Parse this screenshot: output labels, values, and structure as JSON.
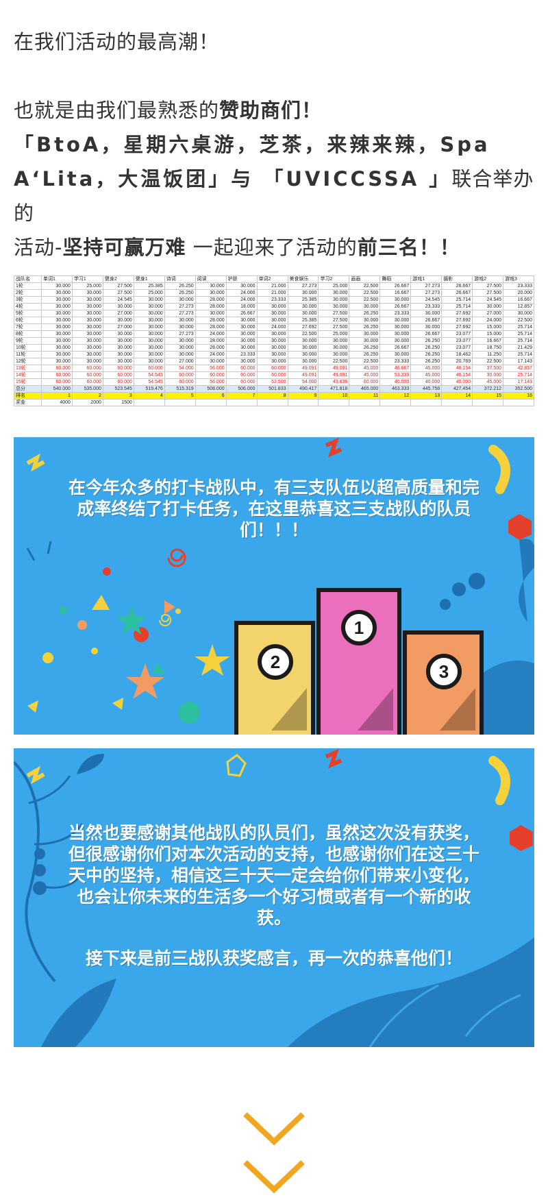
{
  "article": {
    "line1": "在我们活动的最高潮！",
    "line2_pre": "也就是由我们最熟悉的",
    "line2_bold": "赞助商们！",
    "sponsors": "「BtoA，星期六桌游，芝茶，来辣来辣，Spa A‘Lita，大温饭团」与 「UVICCSSA 」",
    "joint": "联合举办的",
    "line5_pre": "活动-",
    "campaign": "坚持可赢万难",
    "line5_mid": " 一起迎来了活动的",
    "top3": "前三名！！"
  },
  "spreadsheet": {
    "headers": [
      "战队名",
      "单词1",
      "学习1",
      "健身2",
      "健身1",
      "诗词",
      "阅读",
      "护肤",
      "单词2",
      "美食娱乐",
      "学习2",
      "画画",
      "舞蹈",
      "游戏1",
      "摄影",
      "游戏2",
      "游戏3"
    ],
    "rows": [
      [
        "1轮",
        "30.000",
        "25.000",
        "27.500",
        "25.385",
        "26.250",
        "30.000",
        "30.000",
        "21.000",
        "27.273",
        "25.000",
        "22.500",
        "26.667",
        "27.273",
        "26.667",
        "27.500",
        "23.333"
      ],
      [
        "2轮",
        "30.000",
        "30.000",
        "27.500",
        "25.000",
        "26.250",
        "30.000",
        "24.000",
        "21.000",
        "30.000",
        "30.000",
        "22.500",
        "16.667",
        "27.273",
        "26.667",
        "27.500",
        "20.000"
      ],
      [
        "3轮",
        "30.000",
        "30.000",
        "24.545",
        "30.000",
        "30.000",
        "28.000",
        "24.000",
        "23.333",
        "25.385",
        "30.000",
        "22.500",
        "30.000",
        "24.545",
        "25.714",
        "24.545",
        "16.667"
      ],
      [
        "4轮",
        "30.000",
        "30.000",
        "30.000",
        "30.000",
        "27.273",
        "28.000",
        "18.000",
        "30.000",
        "30.000",
        "30.000",
        "30.000",
        "26.667",
        "23.333",
        "25.714",
        "30.000",
        "12.857"
      ],
      [
        "5轮",
        "30.000",
        "30.000",
        "27.000",
        "30.000",
        "27.273",
        "30.000",
        "26.667",
        "30.000",
        "30.000",
        "27.500",
        "26.250",
        "23.333",
        "30.000",
        "27.692",
        "27.000",
        "30.000"
      ],
      [
        "6轮",
        "30.000",
        "30.000",
        "30.000",
        "30.000",
        "30.000",
        "28.000",
        "30.000",
        "30.000",
        "25.385",
        "27.500",
        "30.000",
        "30.000",
        "26.667",
        "27.692",
        "24.000",
        "22.500"
      ],
      [
        "7轮",
        "30.000",
        "30.000",
        "27.000",
        "30.000",
        "30.000",
        "28.000",
        "30.000",
        "24.000",
        "27.692",
        "27.500",
        "26.250",
        "30.000",
        "30.000",
        "27.692",
        "15.000",
        "25.714"
      ],
      [
        "8轮",
        "30.000",
        "30.000",
        "30.000",
        "30.000",
        "27.273",
        "24.000",
        "30.000",
        "30.000",
        "22.500",
        "25.000",
        "30.000",
        "30.000",
        "26.667",
        "23.077",
        "15.000",
        "25.714"
      ],
      [
        "9轮",
        "30.000",
        "30.000",
        "30.000",
        "30.000",
        "30.000",
        "28.000",
        "30.000",
        "30.000",
        "30.000",
        "30.000",
        "30.000",
        "30.000",
        "26.250",
        "23.077",
        "16.667",
        "25.714"
      ],
      [
        "10轮",
        "30.000",
        "30.000",
        "30.000",
        "30.000",
        "30.000",
        "28.000",
        "30.000",
        "30.000",
        "30.000",
        "30.000",
        "26.250",
        "26.667",
        "26.250",
        "23.077",
        "18.750",
        "21.429"
      ],
      [
        "11轮",
        "30.000",
        "30.000",
        "30.000",
        "30.000",
        "30.000",
        "24.000",
        "23.333",
        "30.000",
        "30.000",
        "30.000",
        "26.250",
        "30.000",
        "26.250",
        "18.462",
        "11.250",
        "25.714"
      ],
      [
        "12轮",
        "30.000",
        "30.000",
        "30.000",
        "30.000",
        "27.000",
        "30.000",
        "30.000",
        "30.000",
        "30.000",
        "22.500",
        "22.500",
        "23.333",
        "26.250",
        "20.769",
        "22.500",
        "17.143"
      ],
      [
        "13轮",
        "60.000",
        "60.000",
        "60.000",
        "60.000",
        "54.000",
        "56.000",
        "60.000",
        "60.000",
        "49.091",
        "49.091",
        "45.000",
        "46.667",
        "45.000",
        "46.154",
        "37.500",
        "42.857"
      ],
      [
        "14轮",
        "60.000",
        "60.000",
        "60.000",
        "54.545",
        "60.000",
        "60.000",
        "60.000",
        "60.000",
        "49.091",
        "49.091",
        "45.000",
        "53.333",
        "45.000",
        "46.154",
        "30.000",
        "25.714"
      ],
      [
        "15轮",
        "60.000",
        "60.000",
        "60.000",
        "54.545",
        "60.000",
        "56.000",
        "60.000",
        "52.500",
        "54.000",
        "43.636",
        "60.000",
        "40.000",
        "40.000",
        "40.000",
        "45.000",
        "17.143"
      ]
    ],
    "total": [
      "总分",
      "540.000",
      "535.000",
      "523.545",
      "519.476",
      "515.319",
      "508.000",
      "506.000",
      "501.833",
      "490.417",
      "471.818",
      "465.000",
      "463.333",
      "445.758",
      "427.454",
      "372.212",
      "352.500"
    ],
    "rank": [
      "排名",
      "1",
      "2",
      "3",
      "4",
      "5",
      "6",
      "7",
      "8",
      "9",
      "10",
      "11",
      "12",
      "13",
      "14",
      "15",
      "16"
    ],
    "prize": [
      "奖金",
      "4000",
      "2000",
      "1500",
      "",
      "",
      "",
      "",
      "",
      "",
      "",
      "",
      "",
      "",
      "",
      "",
      ""
    ]
  },
  "banner1": {
    "text": "在今年众多的打卡战队中，有三支队伍以超高质量和完成率终结了打卡任务，在这里恭喜这三支战队的队员们！！！",
    "podium": {
      "first": "1",
      "second": "2",
      "third": "3"
    }
  },
  "banner2": {
    "paragraph1": "当然也要感谢其他战队的队员们，虽然这次没有获奖，但很感谢你们对本次活动的支持，也感谢你们在这三十天中的坚持，相信这三十天一定会给你们带来小变化，也会让你未来的生活多一个好习惯或者有一个新的收获。",
    "paragraph2": "接下来是前三战队获奖感言，再一次的恭喜他们！"
  },
  "colors": {
    "banner_bg": "#3aa7ea",
    "chevron": "#f2a51e",
    "podium_first": "#ec6fbd",
    "podium_second": "#f3d36b",
    "podium_third": "#f29b63"
  }
}
